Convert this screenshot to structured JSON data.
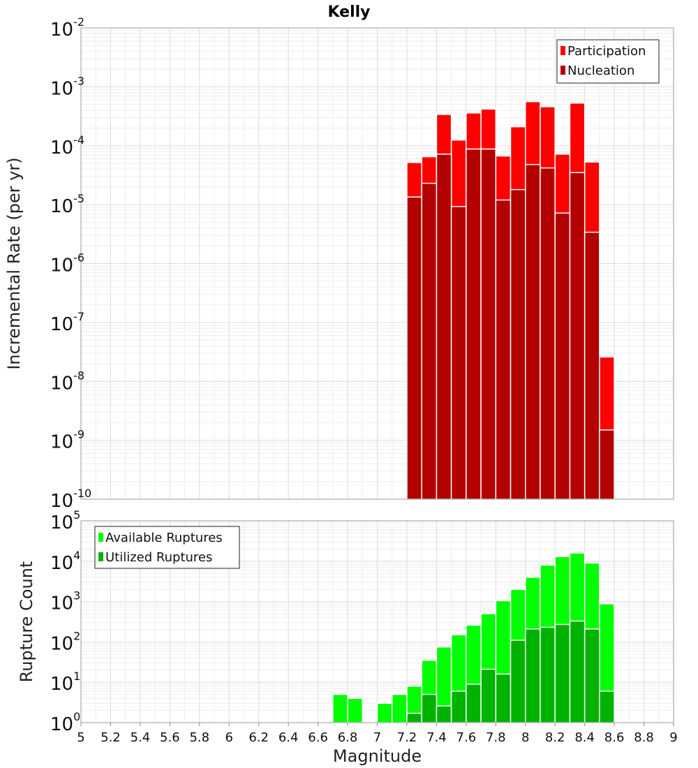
{
  "title": "Kelly",
  "colors": {
    "participation": "#ff0000",
    "nucleation": "#b30000",
    "available": "#00ff00",
    "utilized": "#00b300"
  },
  "chart_data": [
    {
      "type": "bar",
      "scale": "log",
      "ylabel": "Incremental Rate (per yr)",
      "ylim_exp": [
        -10,
        -2
      ],
      "xlim": [
        5,
        9
      ],
      "legend": "top-right",
      "x": [
        7.25,
        7.35,
        7.45,
        7.55,
        7.65,
        7.75,
        7.85,
        7.95,
        8.05,
        8.15,
        8.25,
        8.35,
        8.45,
        8.55
      ],
      "series": [
        {
          "name": "Participation",
          "color_key": "participation",
          "values": [
            5.2e-05,
            6.5e-05,
            0.00034,
            0.000125,
            0.00036,
            0.00042,
            6.7e-05,
            0.00021,
            0.00056,
            0.00046,
            7.2e-05,
            0.00053,
            5.3e-05,
            2.6e-08
          ]
        },
        {
          "name": "Nucleation",
          "color_key": "nucleation",
          "values": [
            1.35e-05,
            2.3e-05,
            7.2e-05,
            9.3e-06,
            8.8e-05,
            8.8e-05,
            1.2e-05,
            1.8e-05,
            4.8e-05,
            4.2e-05,
            7.2e-06,
            3.5e-05,
            3.4e-06,
            1.5e-09
          ]
        }
      ]
    },
    {
      "type": "bar",
      "scale": "log",
      "xlabel": "Magnitude",
      "ylabel": "Rupture Count",
      "ylim_exp": [
        0,
        5
      ],
      "xlim": [
        5,
        9
      ],
      "legend": "top-left",
      "x": [
        6.75,
        6.85,
        6.95,
        7.05,
        7.15,
        7.25,
        7.35,
        7.45,
        7.55,
        7.65,
        7.75,
        7.85,
        7.95,
        8.05,
        8.15,
        8.25,
        8.35,
        8.45,
        8.55
      ],
      "series": [
        {
          "name": "Available Ruptures",
          "color_key": "available",
          "values": [
            5,
            4,
            0,
            3,
            5,
            8,
            35,
            75,
            150,
            260,
            500,
            1050,
            2000,
            4000,
            8000,
            13000,
            16000,
            9000,
            880
          ]
        },
        {
          "name": "Utilized Ruptures",
          "color_key": "utilized",
          "values": [
            0,
            0,
            0,
            0,
            0,
            1.7,
            5,
            2.6,
            6,
            9,
            21,
            16,
            110,
            210,
            230,
            270,
            330,
            210,
            6
          ]
        }
      ]
    }
  ],
  "x_ticks": [
    "5",
    "5.2",
    "5.4",
    "5.6",
    "5.8",
    "6",
    "6.2",
    "6.4",
    "6.6",
    "6.8",
    "7",
    "7.2",
    "7.4",
    "7.6",
    "7.8",
    "8",
    "8.2",
    "8.4",
    "8.6",
    "8.8",
    "9"
  ]
}
